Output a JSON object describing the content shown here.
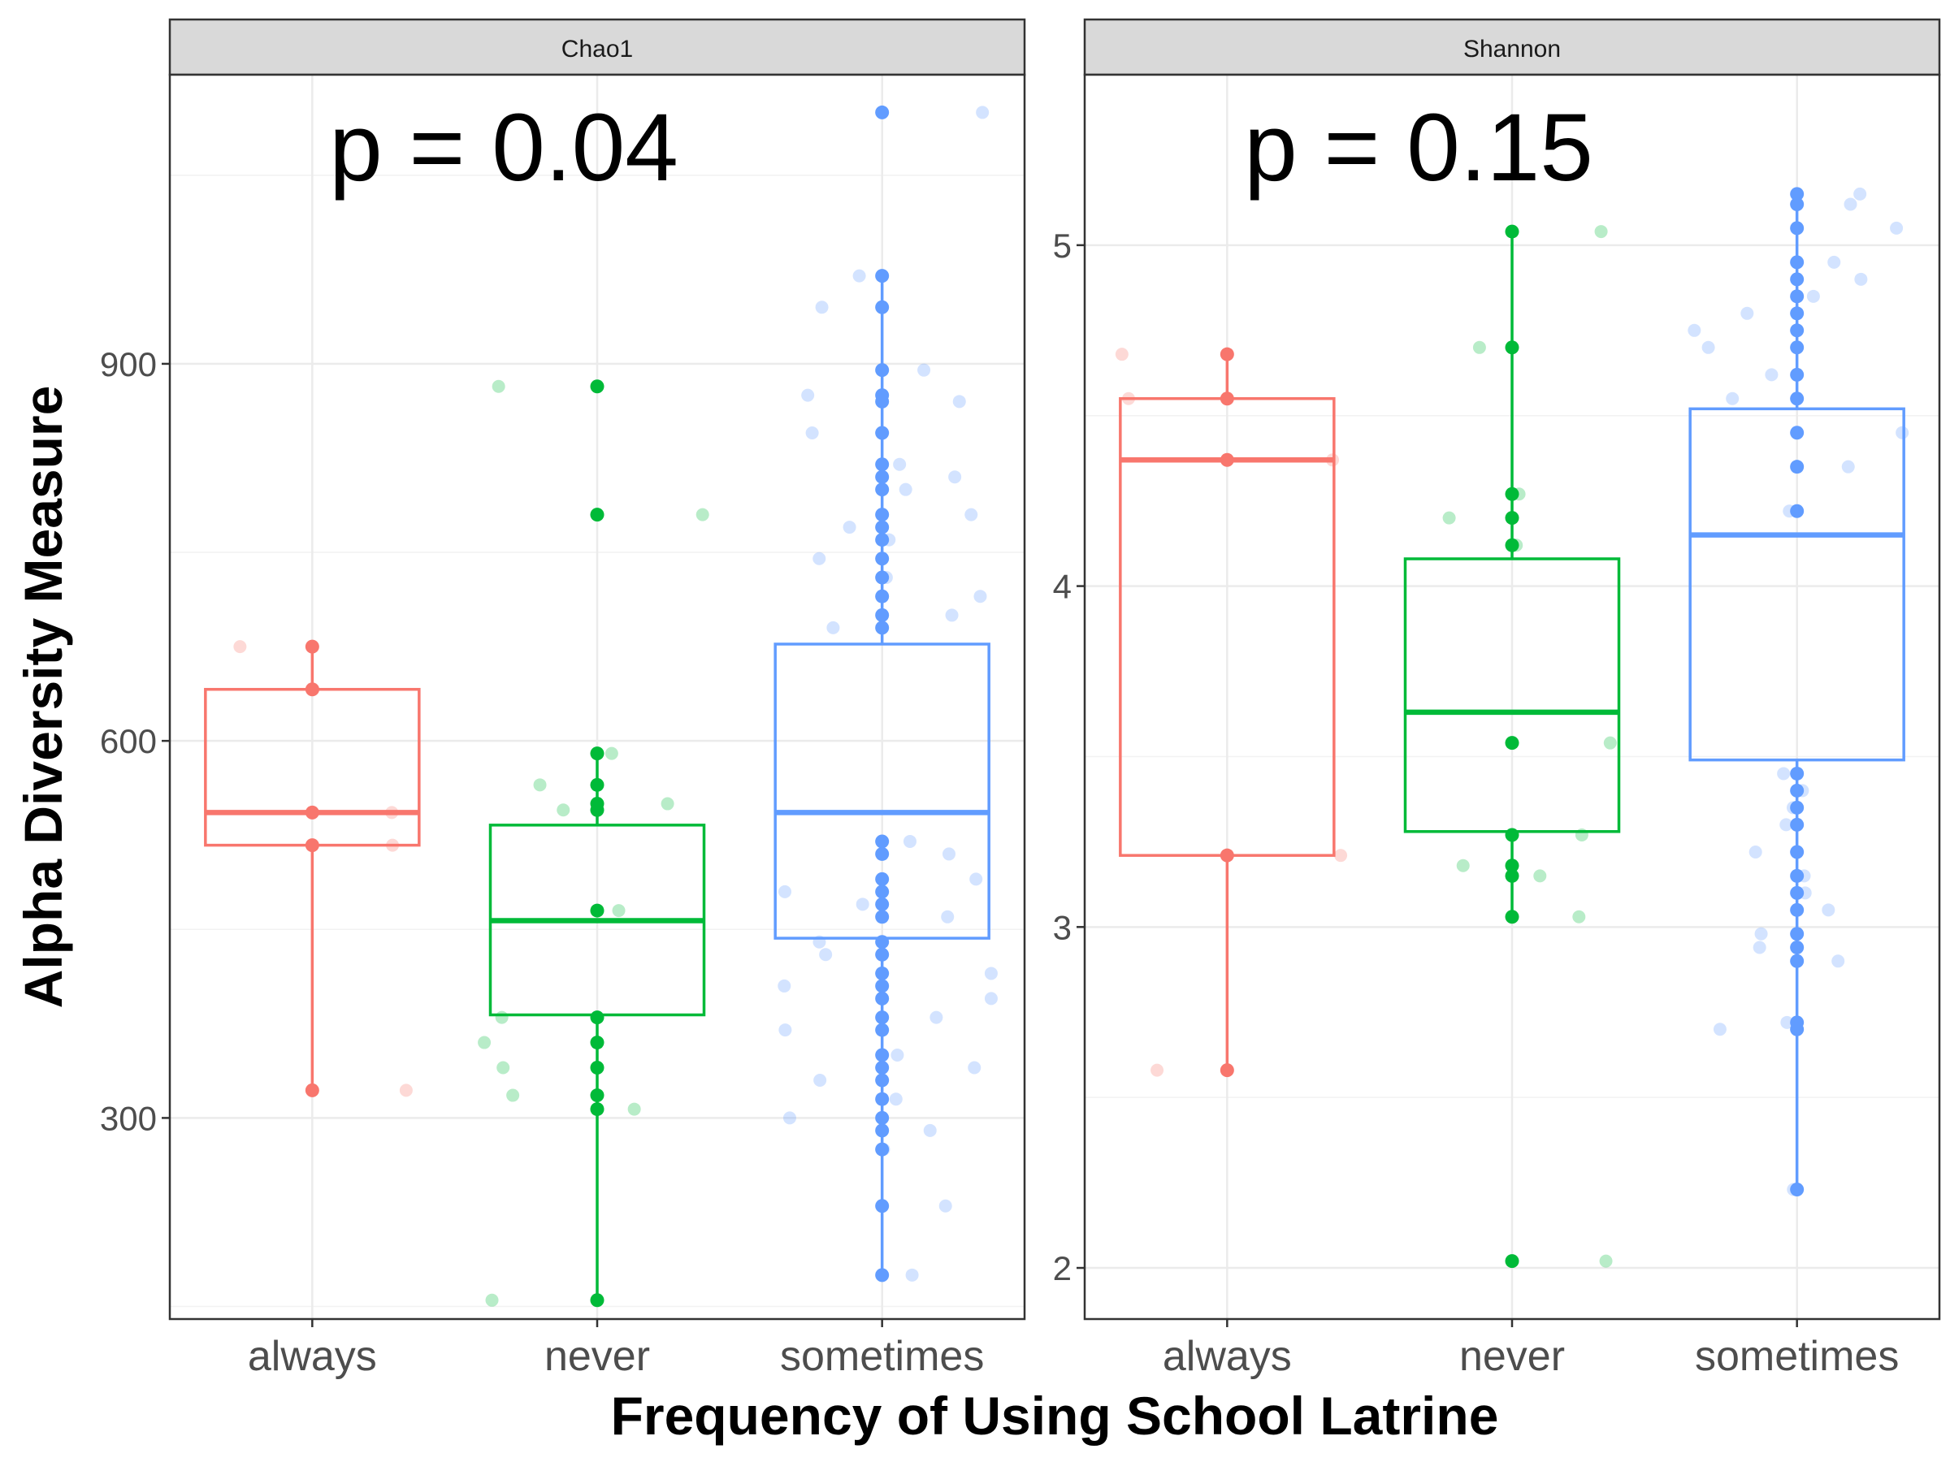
{
  "colors": {
    "always": "#F8766D",
    "never": "#00BA38",
    "sometimes": "#619CFF"
  },
  "xlabel": "Frequency of Using School Latrine",
  "ylabel": "Alpha Diversity Measure",
  "chart_data": [
    {
      "type": "box",
      "title": "Chao1",
      "annotation": "p = 0.04",
      "categories": [
        "always",
        "never",
        "sometimes"
      ],
      "ylim": [
        140,
        1130
      ],
      "yticks": [
        300,
        600,
        900
      ],
      "grid": true,
      "boxes": [
        {
          "name": "always",
          "whisker_low": 322,
          "q1": 517,
          "median": 543,
          "q3": 641,
          "whisker_high": 675,
          "points": [
            675,
            641,
            543,
            517,
            322
          ]
        },
        {
          "name": "never",
          "whisker_low": 155,
          "q1": 382,
          "median": 457,
          "q3": 533,
          "whisker_high": 590,
          "points": [
            590,
            565,
            550,
            545,
            465,
            380,
            360,
            340,
            318,
            307,
            155
          ],
          "outliers": [
            882,
            780
          ]
        },
        {
          "name": "sometimes",
          "whisker_low": 175,
          "q1": 443,
          "median": 543,
          "q3": 677,
          "whisker_high": 970,
          "points": [
            1100,
            970,
            945,
            895,
            875,
            870,
            845,
            820,
            810,
            800,
            780,
            770,
            760,
            745,
            730,
            715,
            700,
            690,
            520,
            510,
            490,
            480,
            470,
            460,
            440,
            430,
            415,
            405,
            395,
            380,
            370,
            350,
            340,
            330,
            315,
            300,
            290,
            275,
            230,
            175
          ]
        }
      ]
    },
    {
      "type": "box",
      "title": "Shannon",
      "annotation": "p = 0.15",
      "categories": [
        "always",
        "never",
        "sometimes"
      ],
      "ylim": [
        1.85,
        5.5
      ],
      "yticks": [
        2,
        3,
        4,
        5
      ],
      "grid": true,
      "boxes": [
        {
          "name": "always",
          "whisker_low": 2.58,
          "q1": 3.21,
          "median": 4.37,
          "q3": 4.55,
          "whisker_high": 4.68,
          "points": [
            4.68,
            4.55,
            4.37,
            3.21,
            2.58
          ]
        },
        {
          "name": "never",
          "whisker_low": 3.03,
          "q1": 3.28,
          "median": 3.63,
          "q3": 4.08,
          "whisker_high": 5.04,
          "points": [
            5.04,
            4.7,
            4.27,
            4.2,
            4.12,
            3.54,
            3.27,
            3.18,
            3.15,
            3.03
          ],
          "outliers": [
            2.02
          ]
        },
        {
          "name": "sometimes",
          "whisker_low": 2.23,
          "q1": 3.49,
          "median": 4.15,
          "q3": 4.52,
          "whisker_high": 5.15,
          "points": [
            5.15,
            5.12,
            5.05,
            4.95,
            4.9,
            4.85,
            4.8,
            4.75,
            4.7,
            4.62,
            4.55,
            4.45,
            4.35,
            4.22,
            3.45,
            3.4,
            3.35,
            3.3,
            3.22,
            3.15,
            3.1,
            3.05,
            2.98,
            2.94,
            2.9,
            2.72,
            2.7,
            2.23
          ]
        }
      ]
    }
  ]
}
